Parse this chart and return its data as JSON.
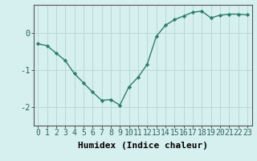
{
  "x": [
    0,
    1,
    2,
    3,
    4,
    5,
    6,
    7,
    8,
    9,
    10,
    11,
    12,
    13,
    14,
    15,
    16,
    17,
    18,
    19,
    20,
    21,
    22,
    23
  ],
  "y": [
    -0.3,
    -0.35,
    -0.55,
    -0.75,
    -1.1,
    -1.35,
    -1.6,
    -1.82,
    -1.8,
    -1.95,
    -1.45,
    -1.2,
    -0.85,
    -0.1,
    0.2,
    0.35,
    0.45,
    0.55,
    0.58,
    0.4,
    0.47,
    0.5,
    0.5,
    0.48
  ],
  "line_color": "#2e7d6e",
  "marker": "D",
  "marker_size": 2.2,
  "line_width": 1.0,
  "bg_color": "#d6f0ef",
  "plot_bg_color": "#d6f0ef",
  "grid_color": "#b8d8d6",
  "grid_color_major": "#c8c8b0",
  "xlabel": "Humidex (Indice chaleur)",
  "xlabel_fontsize": 8,
  "yticks": [
    0,
    -1,
    -2
  ],
  "ylim": [
    -2.5,
    0.75
  ],
  "xlim": [
    -0.5,
    23.5
  ],
  "tick_fontsize": 7,
  "spine_color": "#555555"
}
